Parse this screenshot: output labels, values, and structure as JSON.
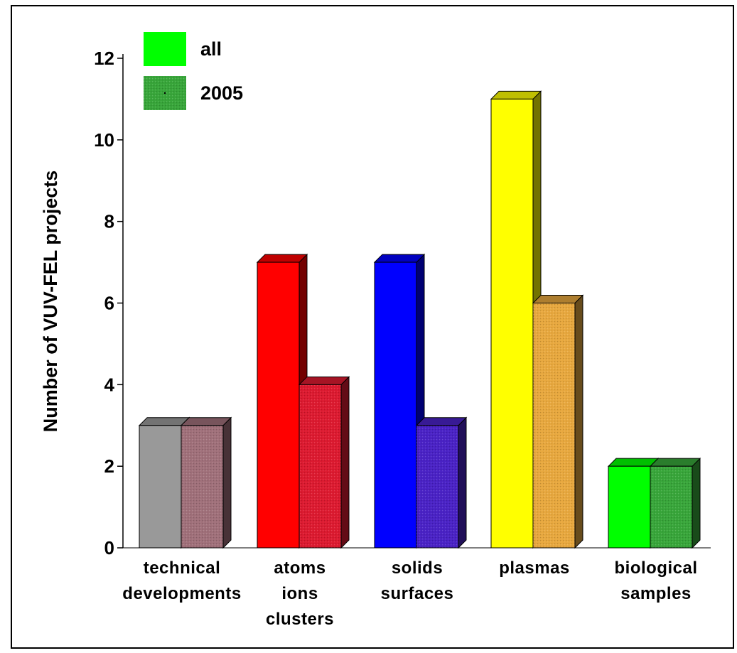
{
  "chart_data": {
    "type": "bar",
    "categories": [
      [
        "technical",
        "developments"
      ],
      [
        "atoms",
        "ions",
        "clusters"
      ],
      [
        "solids",
        "surfaces"
      ],
      [
        "plasmas"
      ],
      [
        "biological",
        "samples"
      ]
    ],
    "series": [
      {
        "name": "all",
        "values": [
          3,
          7,
          7,
          11,
          2
        ]
      },
      {
        "name": "2005",
        "values": [
          3,
          4,
          3,
          6,
          2
        ]
      }
    ],
    "ylabel": "Number of VUV-FEL projects",
    "xlabel": "",
    "ylim": [
      0,
      12
    ],
    "yticks": [
      "0",
      "2",
      "4",
      "6",
      "8",
      "10",
      "12"
    ],
    "grid": false,
    "legend_placement": "top-left",
    "three_d": true,
    "colors": {
      "all": [
        "#999999",
        "#ff0000",
        "#0000ff",
        "#ffff00",
        "#00ff00"
      ],
      "2005": [
        "#a0707a",
        "#dd1a30",
        "#4a22c6",
        "#e8a83e",
        "#38a63a"
      ]
    },
    "legend_colors": {
      "all": "#00ff00",
      "2005": "#38a63a"
    }
  }
}
